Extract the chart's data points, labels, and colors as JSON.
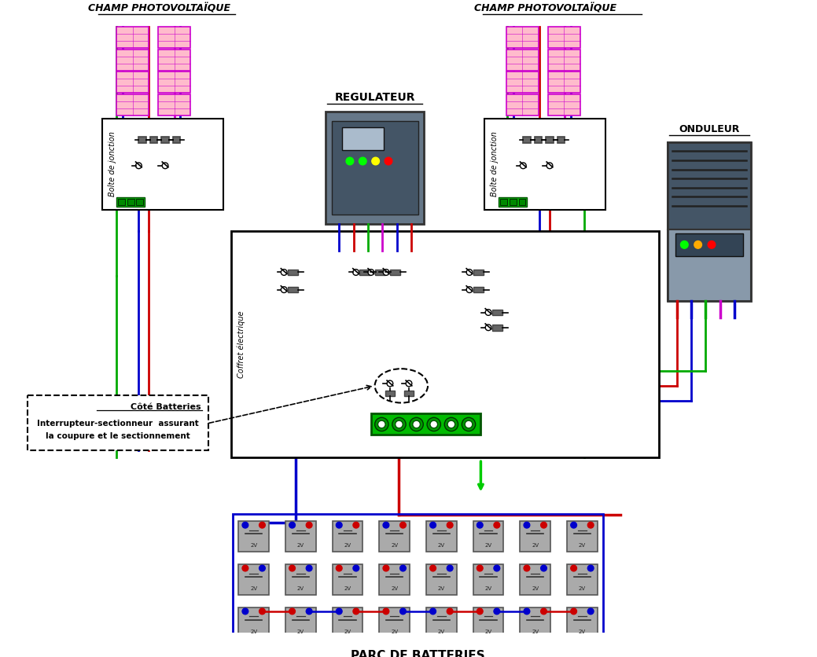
{
  "title": "",
  "bg_color": "#ffffff",
  "figsize": [
    10.39,
    8.36
  ],
  "dpi": 100,
  "label_champ_left": "CHAMP PHOTOVOLTAÏQUE",
  "label_champ_right": "CHAMP PHOTOVOLTAÏQUE",
  "label_regulateur": "REGULATEUR",
  "label_onduleur": "ONDULEUR",
  "label_boite_left": "Boîte de jonction",
  "label_boite_right": "Boîte de jonction",
  "label_coffret": "Coffret électrique",
  "label_batteries": "PARC DE BATTERIES",
  "label_cote_batteries": "Côté Batteries",
  "label_interrupteur": "Interrupteur-sectionneur  assurant",
  "label_coupure": "la coupure et le sectionnement",
  "colors": {
    "red": "#cc0000",
    "blue": "#0000cc",
    "green": "#00aa00",
    "magenta": "#cc00cc",
    "black": "#000000",
    "gray": "#888888",
    "light_gray": "#cccccc",
    "dark_gray": "#444444",
    "bright_green": "#00cc00"
  }
}
